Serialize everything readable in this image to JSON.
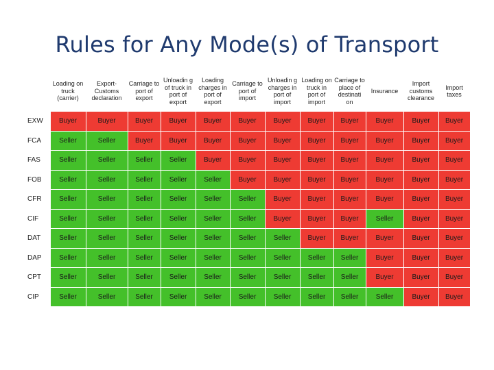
{
  "title": "Rules for Any Mode(s) of Transport",
  "colors": {
    "buyer": "#ee3b33",
    "seller": "#44c02a"
  },
  "columns": [
    "Loading on truck (carrier)",
    "Export-Customs declaration",
    "Carriage to port of export",
    "Unloadin g of truck in port of export",
    "Loading charges in port of export",
    "Carriage to port of import",
    "Unloadin g charges in port of import",
    "Loading on truck in port of import",
    "Carriage to place of destinati on",
    "Insurance",
    "Import customs clearance",
    "Import taxes"
  ],
  "rows": [
    {
      "term": "EXW",
      "cells": [
        "Buyer",
        "Buyer",
        "Buyer",
        "Buyer",
        "Buyer",
        "Buyer",
        "Buyer",
        "Buyer",
        "Buyer",
        "Buyer",
        "Buyer",
        "Buyer"
      ]
    },
    {
      "term": "FCA",
      "cells": [
        "Seller",
        "Seller",
        "Buyer",
        "Buyer",
        "Buyer",
        "Buyer",
        "Buyer",
        "Buyer",
        "Buyer",
        "Buyer",
        "Buyer",
        "Buyer"
      ]
    },
    {
      "term": "FAS",
      "cells": [
        "Seller",
        "Seller",
        "Seller",
        "Seller",
        "Buyer",
        "Buyer",
        "Buyer",
        "Buyer",
        "Buyer",
        "Buyer",
        "Buyer",
        "Buyer"
      ]
    },
    {
      "term": "FOB",
      "cells": [
        "Seller",
        "Seller",
        "Seller",
        "Seller",
        "Seller",
        "Buyer",
        "Buyer",
        "Buyer",
        "Buyer",
        "Buyer",
        "Buyer",
        "Buyer"
      ]
    },
    {
      "term": "CFR",
      "cells": [
        "Seller",
        "Seller",
        "Seller",
        "Seller",
        "Seller",
        "Seller",
        "Buyer",
        "Buyer",
        "Buyer",
        "Buyer",
        "Buyer",
        "Buyer"
      ]
    },
    {
      "term": "CIF",
      "cells": [
        "Seller",
        "Seller",
        "Seller",
        "Seller",
        "Seller",
        "Seller",
        "Buyer",
        "Buyer",
        "Buyer",
        "Seller",
        "Buyer",
        "Buyer"
      ]
    },
    {
      "term": "DAT",
      "cells": [
        "Seller",
        "Seller",
        "Seller",
        "Seller",
        "Seller",
        "Seller",
        "Seller",
        "Buyer",
        "Buyer",
        "Buyer",
        "Buyer",
        "Buyer"
      ]
    },
    {
      "term": "DAP",
      "cells": [
        "Seller",
        "Seller",
        "Seller",
        "Seller",
        "Seller",
        "Seller",
        "Seller",
        "Seller",
        "Seller",
        "Buyer",
        "Buyer",
        "Buyer"
      ]
    },
    {
      "term": "CPT",
      "cells": [
        "Seller",
        "Seller",
        "Seller",
        "Seller",
        "Seller",
        "Seller",
        "Seller",
        "Seller",
        "Seller",
        "Buyer",
        "Buyer",
        "Buyer"
      ]
    },
    {
      "term": "CIP",
      "cells": [
        "Seller",
        "Seller",
        "Seller",
        "Seller",
        "Seller",
        "Seller",
        "Seller",
        "Seller",
        "Seller",
        "Seller",
        "Buyer",
        "Buyer"
      ]
    }
  ]
}
